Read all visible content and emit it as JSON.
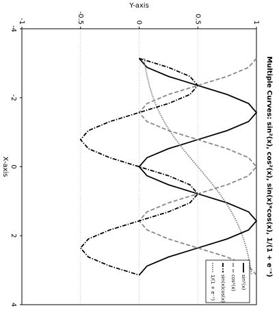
{
  "chart_data": {
    "type": "line",
    "title": "Multiple Curves: sin²(x), cos²(x), sin(x)*cos(x), 1/(1 + e⁻ˣ)",
    "x_label": "X-axis",
    "y_label": "Y-axis",
    "x": [
      -3.1416,
      -2.8798,
      -2.618,
      -2.3562,
      -2.0944,
      -1.8326,
      -1.5708,
      -1.309,
      -1.0472,
      -0.7854,
      -0.5236,
      -0.2618,
      0,
      0.2618,
      0.5236,
      0.7854,
      1.0472,
      1.309,
      1.5708,
      1.8326,
      2.0944,
      2.3562,
      2.618,
      2.8798,
      3.1416
    ],
    "series": [
      {
        "name": "sin²(x)",
        "color": "#000000",
        "style": "solid",
        "values": [
          0,
          0.067,
          0.25,
          0.5,
          0.75,
          0.933,
          1,
          0.933,
          0.75,
          0.5,
          0.25,
          0.067,
          0,
          0.067,
          0.25,
          0.5,
          0.75,
          0.933,
          1,
          0.933,
          0.75,
          0.5,
          0.25,
          0.067,
          0
        ]
      },
      {
        "name": "cos²(x)",
        "color": "#888888",
        "style": "dashed",
        "values": [
          1,
          0.933,
          0.75,
          0.5,
          0.25,
          0.067,
          0,
          0.067,
          0.25,
          0.5,
          0.75,
          0.933,
          1,
          0.933,
          0.75,
          0.5,
          0.25,
          0.067,
          0,
          0.067,
          0.25,
          0.5,
          0.75,
          0.933,
          1
        ]
      },
      {
        "name": "sin(x)cos(x)",
        "color": "#000000",
        "style": "dashdot",
        "values": [
          0,
          0.25,
          0.433,
          0.5,
          0.433,
          0.25,
          0,
          -0.25,
          -0.433,
          -0.5,
          -0.433,
          -0.25,
          0,
          0.25,
          0.433,
          0.5,
          0.433,
          0.25,
          0,
          -0.25,
          -0.433,
          -0.5,
          -0.433,
          -0.25,
          0
        ]
      },
      {
        "name": "1/(1 + e⁻ˣ)",
        "color": "#777777",
        "style": "dotted",
        "values": [
          0.0414,
          0.0532,
          0.068,
          0.0866,
          0.1097,
          0.1379,
          0.1722,
          0.2127,
          0.2598,
          0.3132,
          0.372,
          0.4349,
          0.5,
          0.5651,
          0.628,
          0.6868,
          0.7402,
          0.7873,
          0.8278,
          0.8621,
          0.8903,
          0.9134,
          0.932,
          0.9468,
          0.9586
        ]
      }
    ],
    "xlim": [
      -4,
      4
    ],
    "ylim": [
      -1,
      1
    ],
    "xticks": [
      -4,
      -2,
      0,
      2,
      4
    ],
    "yticks": [
      -1,
      -0.5,
      0,
      0.5,
      1
    ],
    "grid": true,
    "legend": "upper right",
    "rotation": 90
  }
}
